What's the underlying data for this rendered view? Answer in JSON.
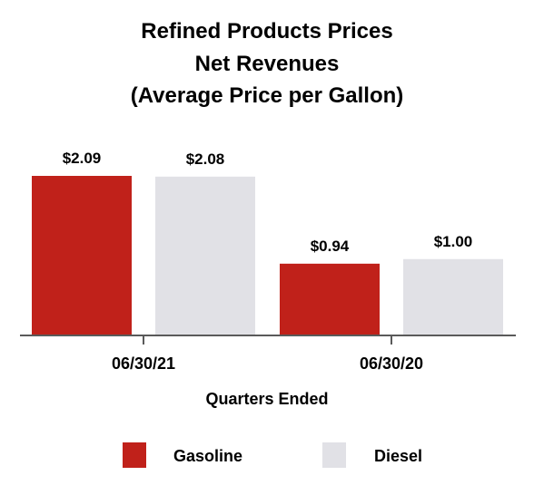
{
  "chart_data": {
    "type": "bar",
    "title_lines": [
      "Refined Products Prices",
      "Net Revenues",
      "(Average Price per Gallon)"
    ],
    "categories": [
      "06/30/21",
      "06/30/20"
    ],
    "series": [
      {
        "name": "Gasoline",
        "color": "#c0211a",
        "values": [
          2.09,
          0.94
        ],
        "labels": [
          "$2.09",
          "$0.94"
        ]
      },
      {
        "name": "Diesel",
        "color": "#e1e1e6",
        "values": [
          2.08,
          1.0
        ],
        "labels": [
          "$2.08",
          "$1.00"
        ]
      }
    ],
    "xlabel": "Quarters Ended",
    "ylabel": "",
    "ylim": [
      0,
      2.09
    ],
    "grid": false,
    "legend_position": "bottom"
  }
}
